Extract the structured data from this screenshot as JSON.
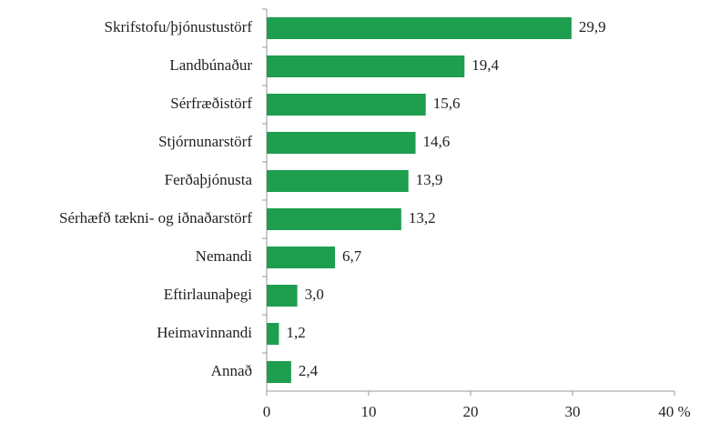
{
  "chart_data": {
    "type": "barh",
    "categories": [
      "Skrifstofu/þjónustustörf",
      "Landbúnaður",
      "Sérfræðistörf",
      "Stjórnunarstörf",
      "Ferðaþjónusta",
      "Sérhæfð tækni- og iðnaðarstörf",
      "Nemandi",
      "Eftirlaunaþegi",
      "Heimavinnandi",
      "Annað"
    ],
    "values": [
      29.9,
      19.4,
      15.6,
      14.6,
      13.9,
      13.2,
      6.7,
      3.0,
      1.2,
      2.4
    ],
    "value_labels": [
      "29,9",
      "19,4",
      "15,6",
      "14,6",
      "13,9",
      "13,2",
      "6,7",
      "3,0",
      "1,2",
      "2,4"
    ],
    "color": "#1e9e4f",
    "xlim": [
      0,
      40
    ],
    "xticks": [
      0,
      10,
      20,
      30,
      {
        "value": 40,
        "label": "40 %"
      }
    ],
    "grid": false
  }
}
